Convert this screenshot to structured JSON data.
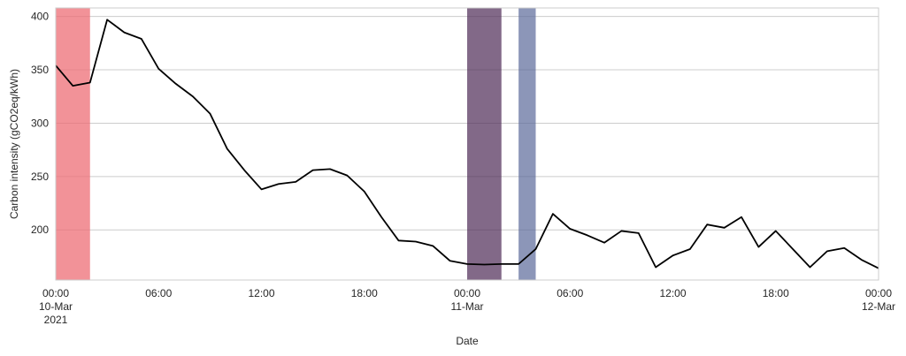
{
  "chart_data": {
    "type": "line",
    "title": "",
    "xlabel": "Date",
    "ylabel": "Carbon intensity (gCO2eq/kWh)",
    "x_unit": "hour",
    "start_datetime": "2021-03-10 00:00",
    "xlim": [
      "2021-03-10 00:00",
      "2021-03-12 00:00"
    ],
    "ylim": [
      153,
      408
    ],
    "yticks": [
      200,
      250,
      300,
      350,
      400
    ],
    "grid": {
      "horizontal": true,
      "vertical": false
    },
    "x_tick_labels": [
      {
        "at": "2021-03-10 00:00",
        "lines": [
          "00:00",
          "10-Mar",
          "2021"
        ]
      },
      {
        "at": "2021-03-10 06:00",
        "lines": [
          "06:00"
        ]
      },
      {
        "at": "2021-03-10 12:00",
        "lines": [
          "12:00"
        ]
      },
      {
        "at": "2021-03-10 18:00",
        "lines": [
          "18:00"
        ]
      },
      {
        "at": "2021-03-11 00:00",
        "lines": [
          "00:00",
          "11-Mar"
        ]
      },
      {
        "at": "2021-03-11 06:00",
        "lines": [
          "06:00"
        ]
      },
      {
        "at": "2021-03-11 12:00",
        "lines": [
          "12:00"
        ]
      },
      {
        "at": "2021-03-11 18:00",
        "lines": [
          "18:00"
        ]
      },
      {
        "at": "2021-03-12 00:00",
        "lines": [
          "00:00",
          "12-Mar"
        ]
      }
    ],
    "highlighted_periods": [
      {
        "start": "2021-03-10 00:00",
        "end": "2021-03-10 02:00",
        "color": "#ee6e76",
        "opacity": 0.75
      },
      {
        "start": "2021-03-11 00:00",
        "end": "2021-03-11 02:00",
        "color": "#4d2a55",
        "opacity": 0.7
      },
      {
        "start": "2021-03-11 03:00",
        "end": "2021-03-11 04:00",
        "color": "#5b6a9a",
        "opacity": 0.7
      }
    ],
    "series": [
      {
        "color": "#000000",
        "x": [
          "2021-03-10 00:00",
          "2021-03-10 01:00",
          "2021-03-10 02:00",
          "2021-03-10 03:00",
          "2021-03-10 04:00",
          "2021-03-10 05:00",
          "2021-03-10 06:00",
          "2021-03-10 07:00",
          "2021-03-10 08:00",
          "2021-03-10 09:00",
          "2021-03-10 10:00",
          "2021-03-10 11:00",
          "2021-03-10 12:00",
          "2021-03-10 13:00",
          "2021-03-10 14:00",
          "2021-03-10 15:00",
          "2021-03-10 16:00",
          "2021-03-10 17:00",
          "2021-03-10 18:00",
          "2021-03-10 19:00",
          "2021-03-10 20:00",
          "2021-03-10 21:00",
          "2021-03-10 22:00",
          "2021-03-10 23:00",
          "2021-03-11 00:00",
          "2021-03-11 01:00",
          "2021-03-11 02:00",
          "2021-03-11 03:00",
          "2021-03-11 04:00",
          "2021-03-11 05:00",
          "2021-03-11 06:00",
          "2021-03-11 07:00",
          "2021-03-11 08:00",
          "2021-03-11 09:00",
          "2021-03-11 10:00",
          "2021-03-11 11:00",
          "2021-03-11 12:00",
          "2021-03-11 13:00",
          "2021-03-11 14:00",
          "2021-03-11 15:00",
          "2021-03-11 16:00",
          "2021-03-11 17:00",
          "2021-03-11 18:00",
          "2021-03-11 19:00",
          "2021-03-11 20:00",
          "2021-03-11 21:00",
          "2021-03-11 22:00",
          "2021-03-11 23:00",
          "2021-03-12 00:00"
        ],
        "values": [
          354,
          335,
          338,
          397,
          385,
          379,
          351,
          337,
          325,
          309,
          276,
          256,
          238,
          243,
          245,
          256,
          257,
          251,
          236,
          212,
          190,
          189,
          185,
          171,
          168,
          167.5,
          168,
          168,
          182,
          215,
          201,
          195,
          188,
          199,
          197,
          165,
          176,
          182,
          205,
          202,
          212,
          184,
          199,
          182,
          165,
          180,
          183,
          172,
          164
        ]
      }
    ]
  }
}
